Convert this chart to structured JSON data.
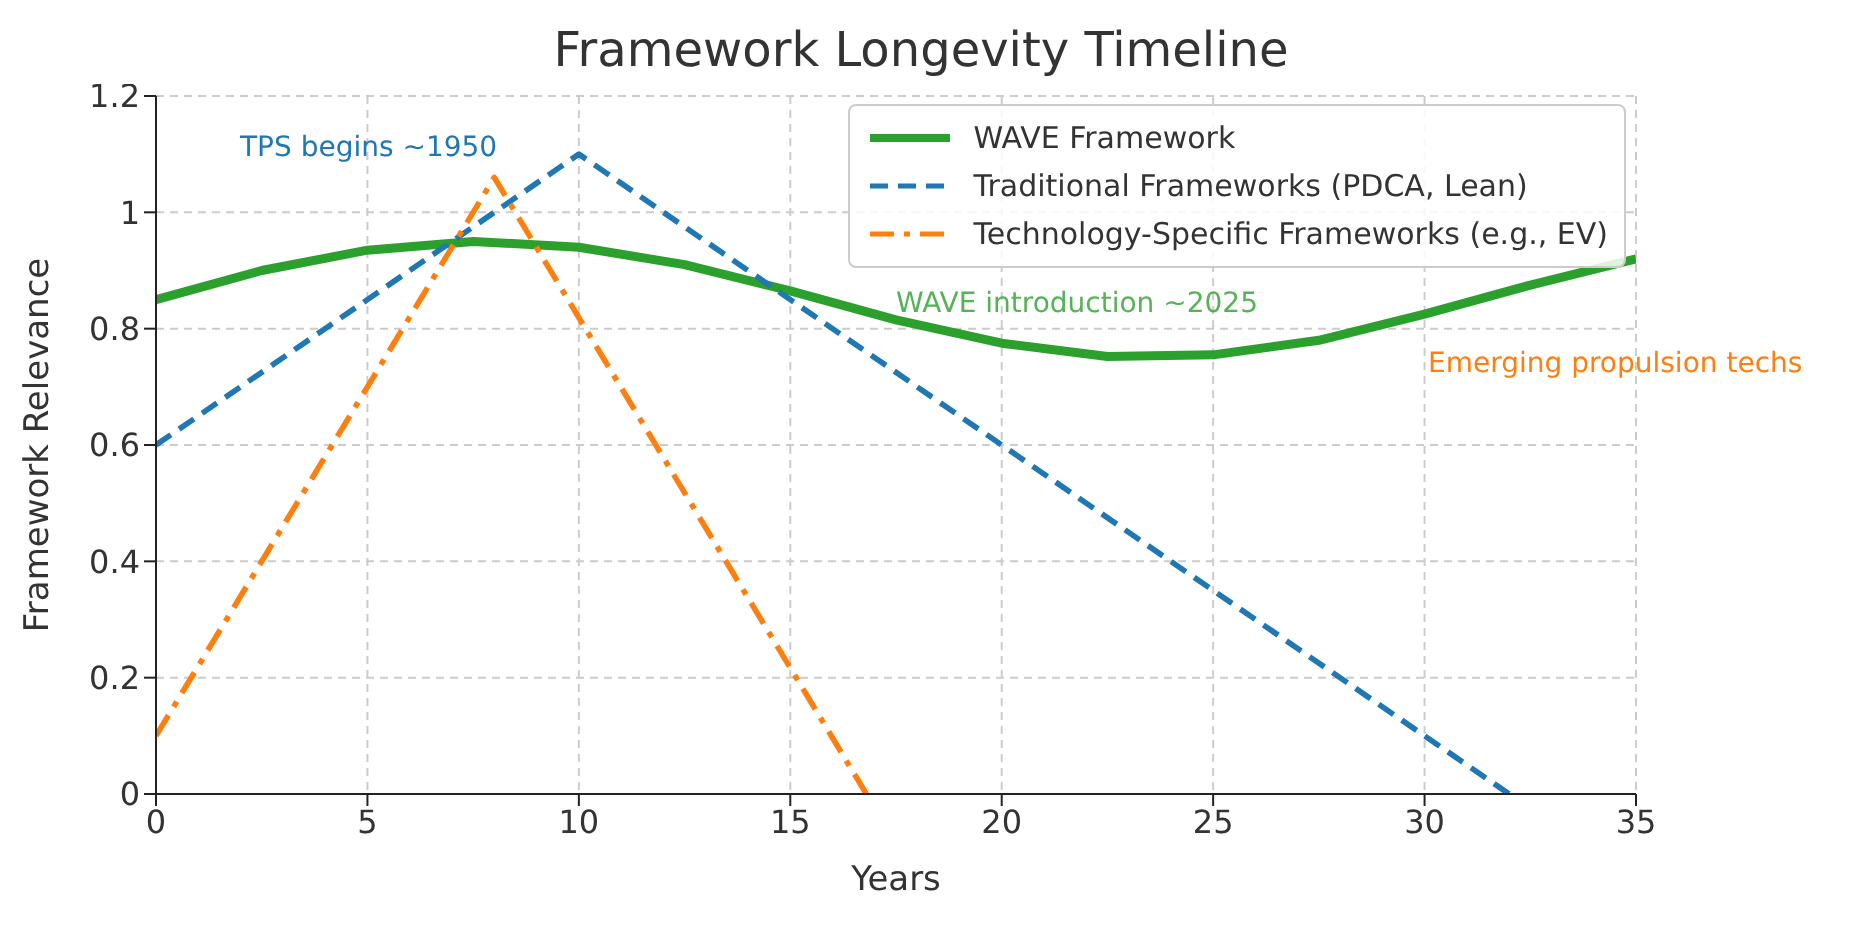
{
  "chart_data": {
    "type": "line",
    "title": "Framework Longevity Timeline",
    "xlabel": "Years",
    "ylabel": "Framework Relevance",
    "series": [
      {
        "name": "WAVE Framework",
        "color": "#2ca02c",
        "line_style": "solid",
        "x": [
          0,
          2.5,
          5,
          7.5,
          10,
          12.5,
          15,
          17.5,
          20,
          22.5,
          25,
          27.5,
          30,
          32.5,
          35
        ],
        "values": [
          0.85,
          0.9,
          0.935,
          0.95,
          0.94,
          0.91,
          0.865,
          0.815,
          0.775,
          0.752,
          0.755,
          0.78,
          0.825,
          0.875,
          0.92
        ]
      },
      {
        "name": "Traditional Frameworks (PDCA, Lean)",
        "color": "#1f77b4",
        "line_style": "dashed",
        "x": [
          0,
          10,
          32
        ],
        "values": [
          0.6,
          1.1,
          0
        ]
      },
      {
        "name": "Technology-Specific Frameworks (e.g., EV)",
        "color": "#ff7f0e",
        "line_style": "dashdot",
        "x": [
          0,
          8,
          16.8
        ],
        "values": [
          0.1,
          1.06,
          0
        ]
      }
    ],
    "annotations": [
      "TPS begins ~1950",
      "WAVE introduction ~2025",
      "Emerging propulsion techs"
    ],
    "xlim": [
      0,
      35
    ],
    "xticks": [
      0,
      5,
      10,
      15,
      20,
      25,
      30,
      35
    ],
    "ylim": [
      0,
      1.2
    ],
    "yticks": [
      0,
      0.2,
      0.4,
      0.6,
      0.8,
      1.0,
      1.2
    ],
    "grid": true,
    "legend": "top right"
  }
}
